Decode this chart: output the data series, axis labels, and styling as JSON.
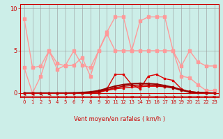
{
  "background_color": "#cceee8",
  "grid_color": "#999999",
  "xlim": [
    -0.5,
    23.5
  ],
  "ylim": [
    -0.5,
    10.5
  ],
  "yticks": [
    0,
    5,
    10
  ],
  "xticks": [
    0,
    1,
    2,
    3,
    4,
    5,
    6,
    7,
    8,
    9,
    10,
    11,
    12,
    13,
    14,
    15,
    16,
    17,
    18,
    19,
    20,
    21,
    22,
    23
  ],
  "xlabel": "Vent moyen/en rafales ( km/h )",
  "line_pink1": {
    "x": [
      0,
      1,
      2,
      3,
      4,
      5,
      6,
      7,
      8,
      9,
      10,
      11,
      12,
      13,
      14,
      15,
      16,
      17,
      18,
      19,
      20,
      21,
      22,
      23
    ],
    "y": [
      8.8,
      3.0,
      3.2,
      5.0,
      2.8,
      3.3,
      5.0,
      3.3,
      3.0,
      5.0,
      7.2,
      9.0,
      9.0,
      5.0,
      8.5,
      9.0,
      9.0,
      9.0,
      5.0,
      3.2,
      5.0,
      3.7,
      3.2,
      3.2
    ],
    "color": "#ff9999",
    "lw": 1.0,
    "ms": 2.5
  },
  "line_pink2": {
    "x": [
      0,
      1,
      2,
      3,
      4,
      5,
      6,
      7,
      8,
      9,
      10,
      11,
      12,
      13,
      14,
      15,
      16,
      17,
      18,
      19,
      20,
      21,
      22,
      23
    ],
    "y": [
      3.0,
      0.0,
      2.0,
      5.0,
      3.5,
      3.2,
      3.3,
      4.2,
      2.0,
      5.0,
      7.0,
      5.0,
      5.0,
      5.0,
      5.0,
      5.0,
      5.0,
      5.0,
      5.0,
      2.0,
      1.8,
      1.0,
      0.3,
      0.3
    ],
    "color": "#ff9999",
    "lw": 1.0,
    "ms": 2.5
  },
  "line_red1": {
    "x": [
      0,
      1,
      2,
      3,
      4,
      5,
      6,
      7,
      8,
      9,
      10,
      11,
      12,
      13,
      14,
      15,
      16,
      17,
      18,
      19,
      20,
      21,
      22,
      23
    ],
    "y": [
      0.0,
      0.0,
      0.0,
      0.0,
      0.0,
      0.0,
      0.0,
      0.0,
      0.0,
      0.0,
      0.5,
      2.2,
      2.2,
      1.0,
      0.5,
      2.0,
      2.2,
      1.7,
      1.5,
      0.5,
      0.1,
      0.05,
      0.05,
      0.0
    ],
    "color": "#dd0000",
    "lw": 1.0,
    "ms": 2.0
  },
  "line_red2": {
    "x": [
      0,
      1,
      2,
      3,
      4,
      5,
      6,
      7,
      8,
      9,
      10,
      11,
      12,
      13,
      14,
      15,
      16,
      17,
      18,
      19,
      20,
      21,
      22,
      23
    ],
    "y": [
      0.0,
      0.0,
      0.0,
      0.0,
      0.0,
      0.0,
      0.0,
      0.0,
      0.05,
      0.1,
      0.3,
      0.5,
      0.6,
      0.7,
      0.75,
      0.8,
      0.8,
      0.75,
      0.7,
      0.4,
      0.2,
      0.08,
      0.03,
      0.01
    ],
    "color": "#dd0000",
    "lw": 1.0,
    "ms": 2.0
  },
  "line_red3": {
    "x": [
      0,
      1,
      2,
      3,
      4,
      5,
      6,
      7,
      8,
      9,
      10,
      11,
      12,
      13,
      14,
      15,
      16,
      17,
      18,
      19,
      20,
      21,
      22,
      23
    ],
    "y": [
      0.0,
      0.0,
      0.0,
      0.0,
      0.0,
      0.0,
      0.0,
      0.02,
      0.08,
      0.18,
      0.38,
      0.62,
      0.8,
      0.9,
      0.95,
      0.95,
      0.88,
      0.75,
      0.6,
      0.32,
      0.12,
      0.04,
      0.01,
      0.0
    ],
    "color": "#bb0000",
    "lw": 1.2,
    "ms": 2.0
  },
  "line_red4": {
    "x": [
      0,
      1,
      2,
      3,
      4,
      5,
      6,
      7,
      8,
      9,
      10,
      11,
      12,
      13,
      14,
      15,
      16,
      17,
      18,
      19,
      20,
      21,
      22,
      23
    ],
    "y": [
      0.0,
      0.0,
      0.0,
      0.0,
      0.0,
      0.0,
      0.02,
      0.06,
      0.14,
      0.28,
      0.55,
      0.82,
      1.0,
      1.1,
      1.15,
      1.12,
      1.05,
      0.88,
      0.68,
      0.38,
      0.15,
      0.05,
      0.02,
      0.0
    ],
    "color": "#990000",
    "lw": 1.5,
    "ms": 2.0
  },
  "arrows": {
    "x": [
      0,
      1,
      2,
      3,
      4,
      5,
      6,
      7,
      8,
      9,
      10,
      11,
      12,
      13,
      14,
      15,
      16,
      17,
      18,
      19,
      20,
      21,
      22,
      23
    ],
    "symbols": [
      "↗",
      "↗",
      "↗",
      "↗",
      "↘",
      "↘",
      "↘",
      "↘",
      "↘",
      "↘",
      "↘",
      "↘",
      "↓",
      "→",
      "↗",
      "↗",
      "→",
      "↘",
      "↘",
      "↘",
      "←",
      "←",
      "←",
      "←"
    ]
  }
}
